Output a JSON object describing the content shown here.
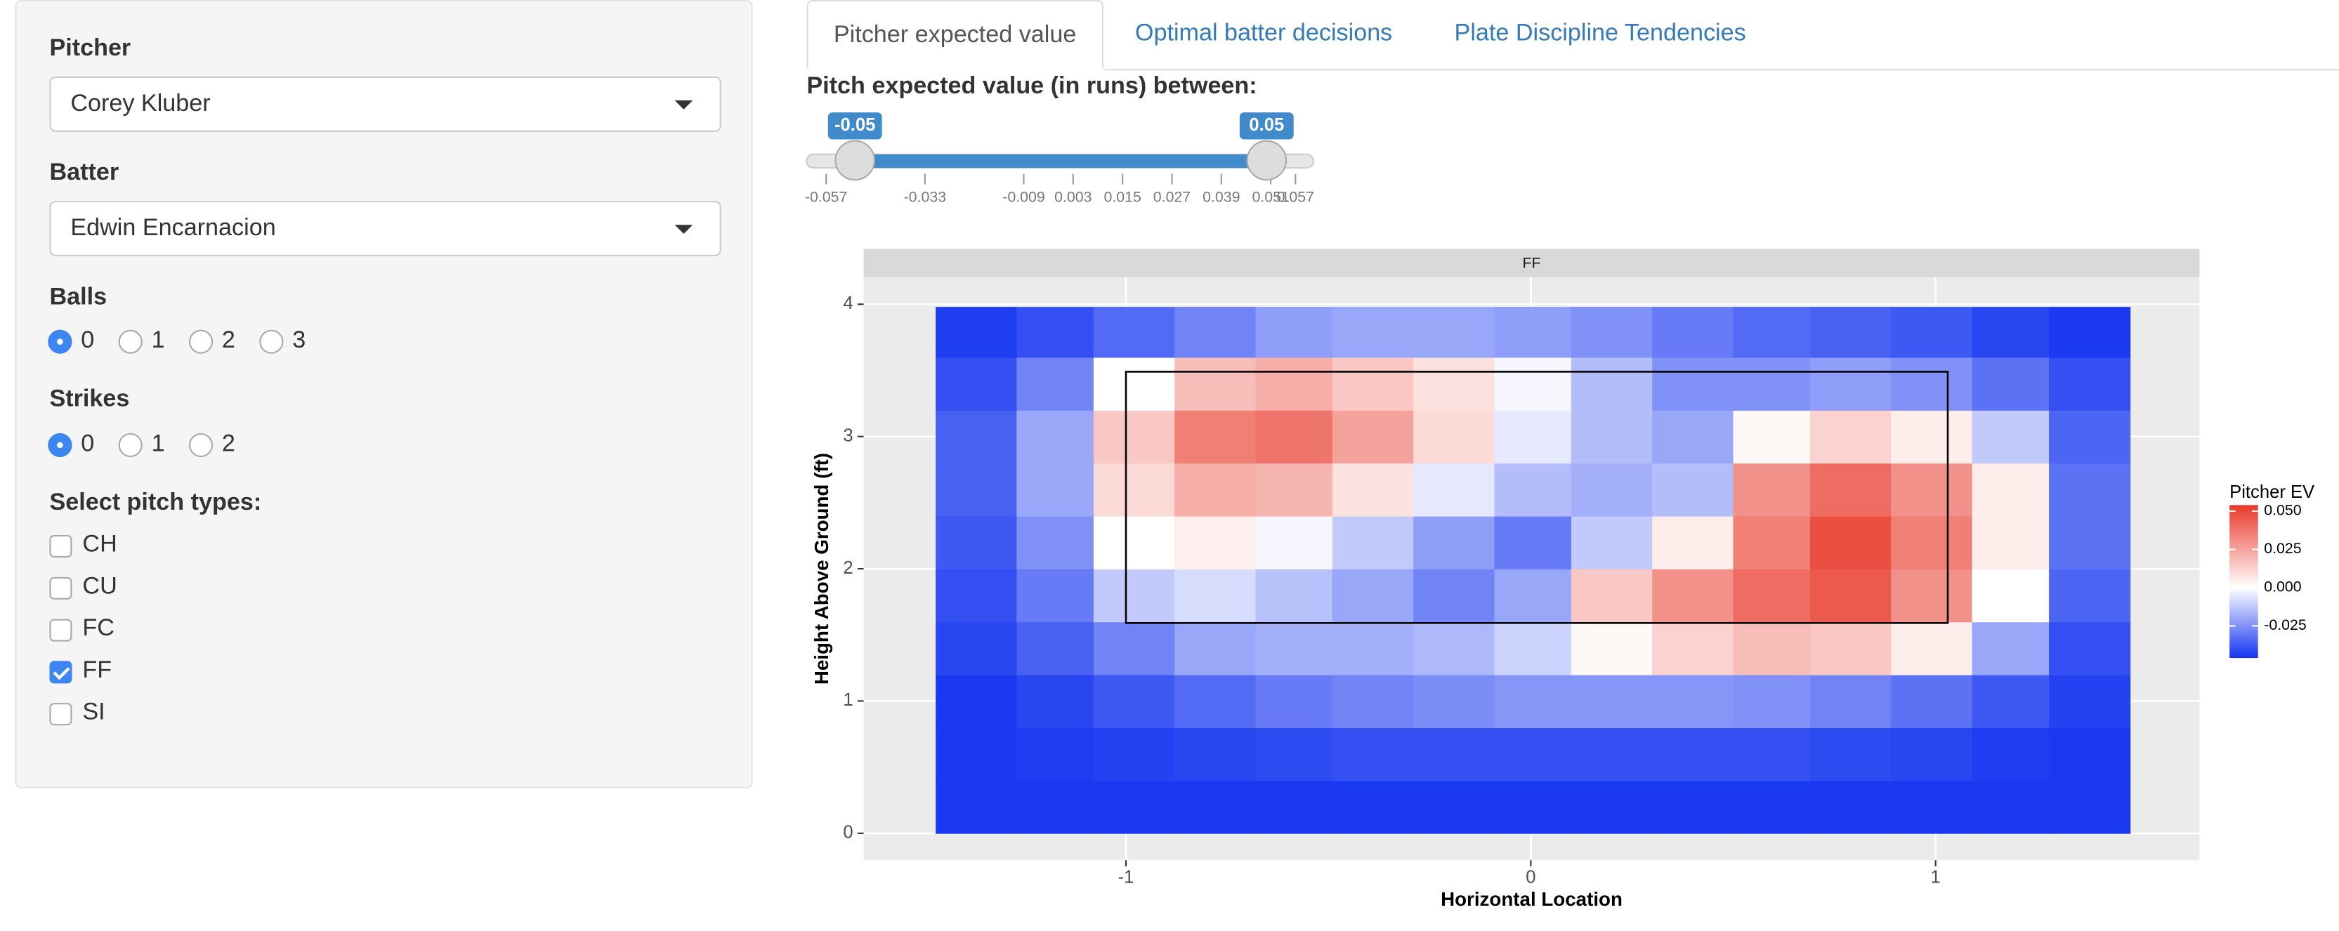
{
  "sidebar": {
    "pitcher_label": "Pitcher",
    "pitcher": "Corey Kluber",
    "batter_label": "Batter",
    "batter": "Edwin Encarnacion",
    "balls_label": "Balls",
    "balls_options": [
      "0",
      "1",
      "2",
      "3"
    ],
    "balls_selected": 0,
    "strikes_label": "Strikes",
    "strikes_options": [
      "0",
      "1",
      "2"
    ],
    "strikes_selected": 0,
    "pitch_types_label": "Select pitch types:",
    "pitch_types": [
      {
        "label": "CH",
        "checked": false
      },
      {
        "label": "CU",
        "checked": false
      },
      {
        "label": "FC",
        "checked": false
      },
      {
        "label": "FF",
        "checked": true
      },
      {
        "label": "SI",
        "checked": false
      }
    ]
  },
  "tabs": [
    {
      "label": "Pitcher expected value",
      "active": true
    },
    {
      "label": "Optimal batter decisions",
      "active": false
    },
    {
      "label": "Plate Discipline Tendencies",
      "active": false
    }
  ],
  "slider": {
    "label": "Pitch expected value (in runs) between:",
    "min": -0.057,
    "max": 0.057,
    "from": -0.05,
    "to": 0.05,
    "ticks": [
      -0.057,
      -0.033,
      -0.009,
      0.003,
      0.015,
      0.027,
      0.039,
      0.051,
      0.057
    ]
  },
  "chart_data": {
    "type": "heatmap",
    "facet": "FF",
    "xlabel": "Horizontal Location",
    "ylabel": "Height Above Ground (ft)",
    "xlim": [
      -1.648,
      1.652
    ],
    "ylim": [
      -0.204,
      4.204
    ],
    "xticks": [
      -1,
      0,
      1
    ],
    "yticks": [
      0,
      1,
      2,
      3,
      4
    ],
    "grid": true,
    "strike_zone": {
      "x": [
        -1,
        1.03
      ],
      "y": [
        1.59,
        3.49
      ]
    },
    "xbins": [
      -1.47,
      -1.27,
      -1.08,
      -0.88,
      -0.68,
      -0.49,
      -0.29,
      -0.09,
      0.1,
      0.3,
      0.5,
      0.69,
      0.89,
      1.09,
      1.28,
      1.48
    ],
    "ybins": [
      0,
      0.4,
      0.8,
      1.2,
      1.6,
      2.0,
      2.4,
      2.8,
      3.2,
      3.6,
      3.98
    ],
    "z": [
      [
        -0.045,
        -0.045,
        -0.045,
        -0.045,
        -0.045,
        -0.045,
        -0.045,
        -0.045,
        -0.045,
        -0.045,
        -0.045,
        -0.045,
        -0.045,
        -0.045,
        -0.045
      ],
      [
        -0.045,
        -0.044,
        -0.043,
        -0.042,
        -0.041,
        -0.04,
        -0.04,
        -0.04,
        -0.04,
        -0.04,
        -0.04,
        -0.041,
        -0.042,
        -0.044,
        -0.045
      ],
      [
        -0.045,
        -0.042,
        -0.038,
        -0.034,
        -0.03,
        -0.028,
        -0.026,
        -0.024,
        -0.024,
        -0.024,
        -0.025,
        -0.028,
        -0.032,
        -0.038,
        -0.043
      ],
      [
        -0.042,
        -0.036,
        -0.028,
        -0.02,
        -0.018,
        -0.018,
        -0.016,
        -0.01,
        0.002,
        0.012,
        0.018,
        0.015,
        0.005,
        -0.02,
        -0.04
      ],
      [
        -0.04,
        -0.03,
        -0.012,
        -0.008,
        -0.014,
        -0.02,
        -0.028,
        -0.02,
        0.015,
        0.03,
        0.04,
        0.045,
        0.03,
        0.0,
        -0.035
      ],
      [
        -0.038,
        -0.025,
        0.0,
        0.004,
        -0.002,
        -0.012,
        -0.022,
        -0.03,
        -0.012,
        0.005,
        0.035,
        0.048,
        0.035,
        0.005,
        -0.032
      ],
      [
        -0.036,
        -0.02,
        0.01,
        0.022,
        0.02,
        0.008,
        -0.005,
        -0.015,
        -0.018,
        -0.015,
        0.03,
        0.04,
        0.03,
        0.005,
        -0.032
      ],
      [
        -0.036,
        -0.02,
        0.015,
        0.035,
        0.038,
        0.025,
        0.01,
        -0.005,
        -0.015,
        -0.02,
        0.002,
        0.012,
        0.005,
        -0.012,
        -0.035
      ],
      [
        -0.04,
        -0.028,
        0.0,
        0.018,
        0.022,
        0.015,
        0.008,
        -0.002,
        -0.015,
        -0.025,
        -0.025,
        -0.022,
        -0.025,
        -0.032,
        -0.04
      ],
      [
        -0.044,
        -0.04,
        -0.034,
        -0.028,
        -0.022,
        -0.02,
        -0.02,
        -0.022,
        -0.025,
        -0.03,
        -0.034,
        -0.036,
        -0.038,
        -0.042,
        -0.045
      ]
    ],
    "legend_title": "Pitcher EV",
    "clim": [
      -0.046,
      0.054
    ],
    "colors": {
      "low": "#1535f0",
      "mid": "#ffffff",
      "high": "#e8392a"
    },
    "legend_ticks": [
      {
        "value": 0.05,
        "label": "0.050"
      },
      {
        "value": 0.025,
        "label": "0.025"
      },
      {
        "value": 0,
        "label": "0.000"
      },
      {
        "value": -0.025,
        "label": "-0.025"
      }
    ]
  }
}
